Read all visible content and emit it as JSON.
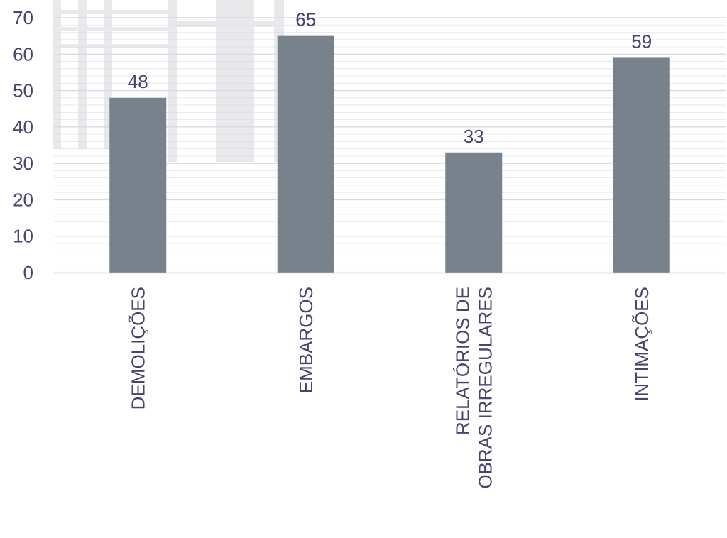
{
  "chart_data": {
    "type": "bar",
    "categories": [
      "DEMOLIÇÕES",
      "EMBARGOS",
      "RELATÓRIOS DE OBRAS IRREGULARES",
      "INTIMAÇÕES"
    ],
    "category_lines": [
      [
        "DEMOLIÇÕES"
      ],
      [
        "EMBARGOS"
      ],
      [
        "RELATÓRIOS DE",
        "OBRAS IRREGULARES"
      ],
      [
        "INTIMAÇÕES"
      ]
    ],
    "values": [
      48,
      65,
      33,
      59
    ],
    "data_labels": [
      "48",
      "65",
      "33",
      "59"
    ],
    "y_ticks": [
      "0",
      "10",
      "20",
      "30",
      "40",
      "50",
      "60",
      "70"
    ],
    "ylim": [
      0,
      70
    ],
    "grid": true,
    "title": "",
    "xlabel": "",
    "ylabel": ""
  },
  "colors": {
    "bar": "#78828d",
    "text": "#4a4270",
    "gridline": "#d9d8e3",
    "axis": "#c9c6dd",
    "watermark": "#e9e9ec"
  }
}
